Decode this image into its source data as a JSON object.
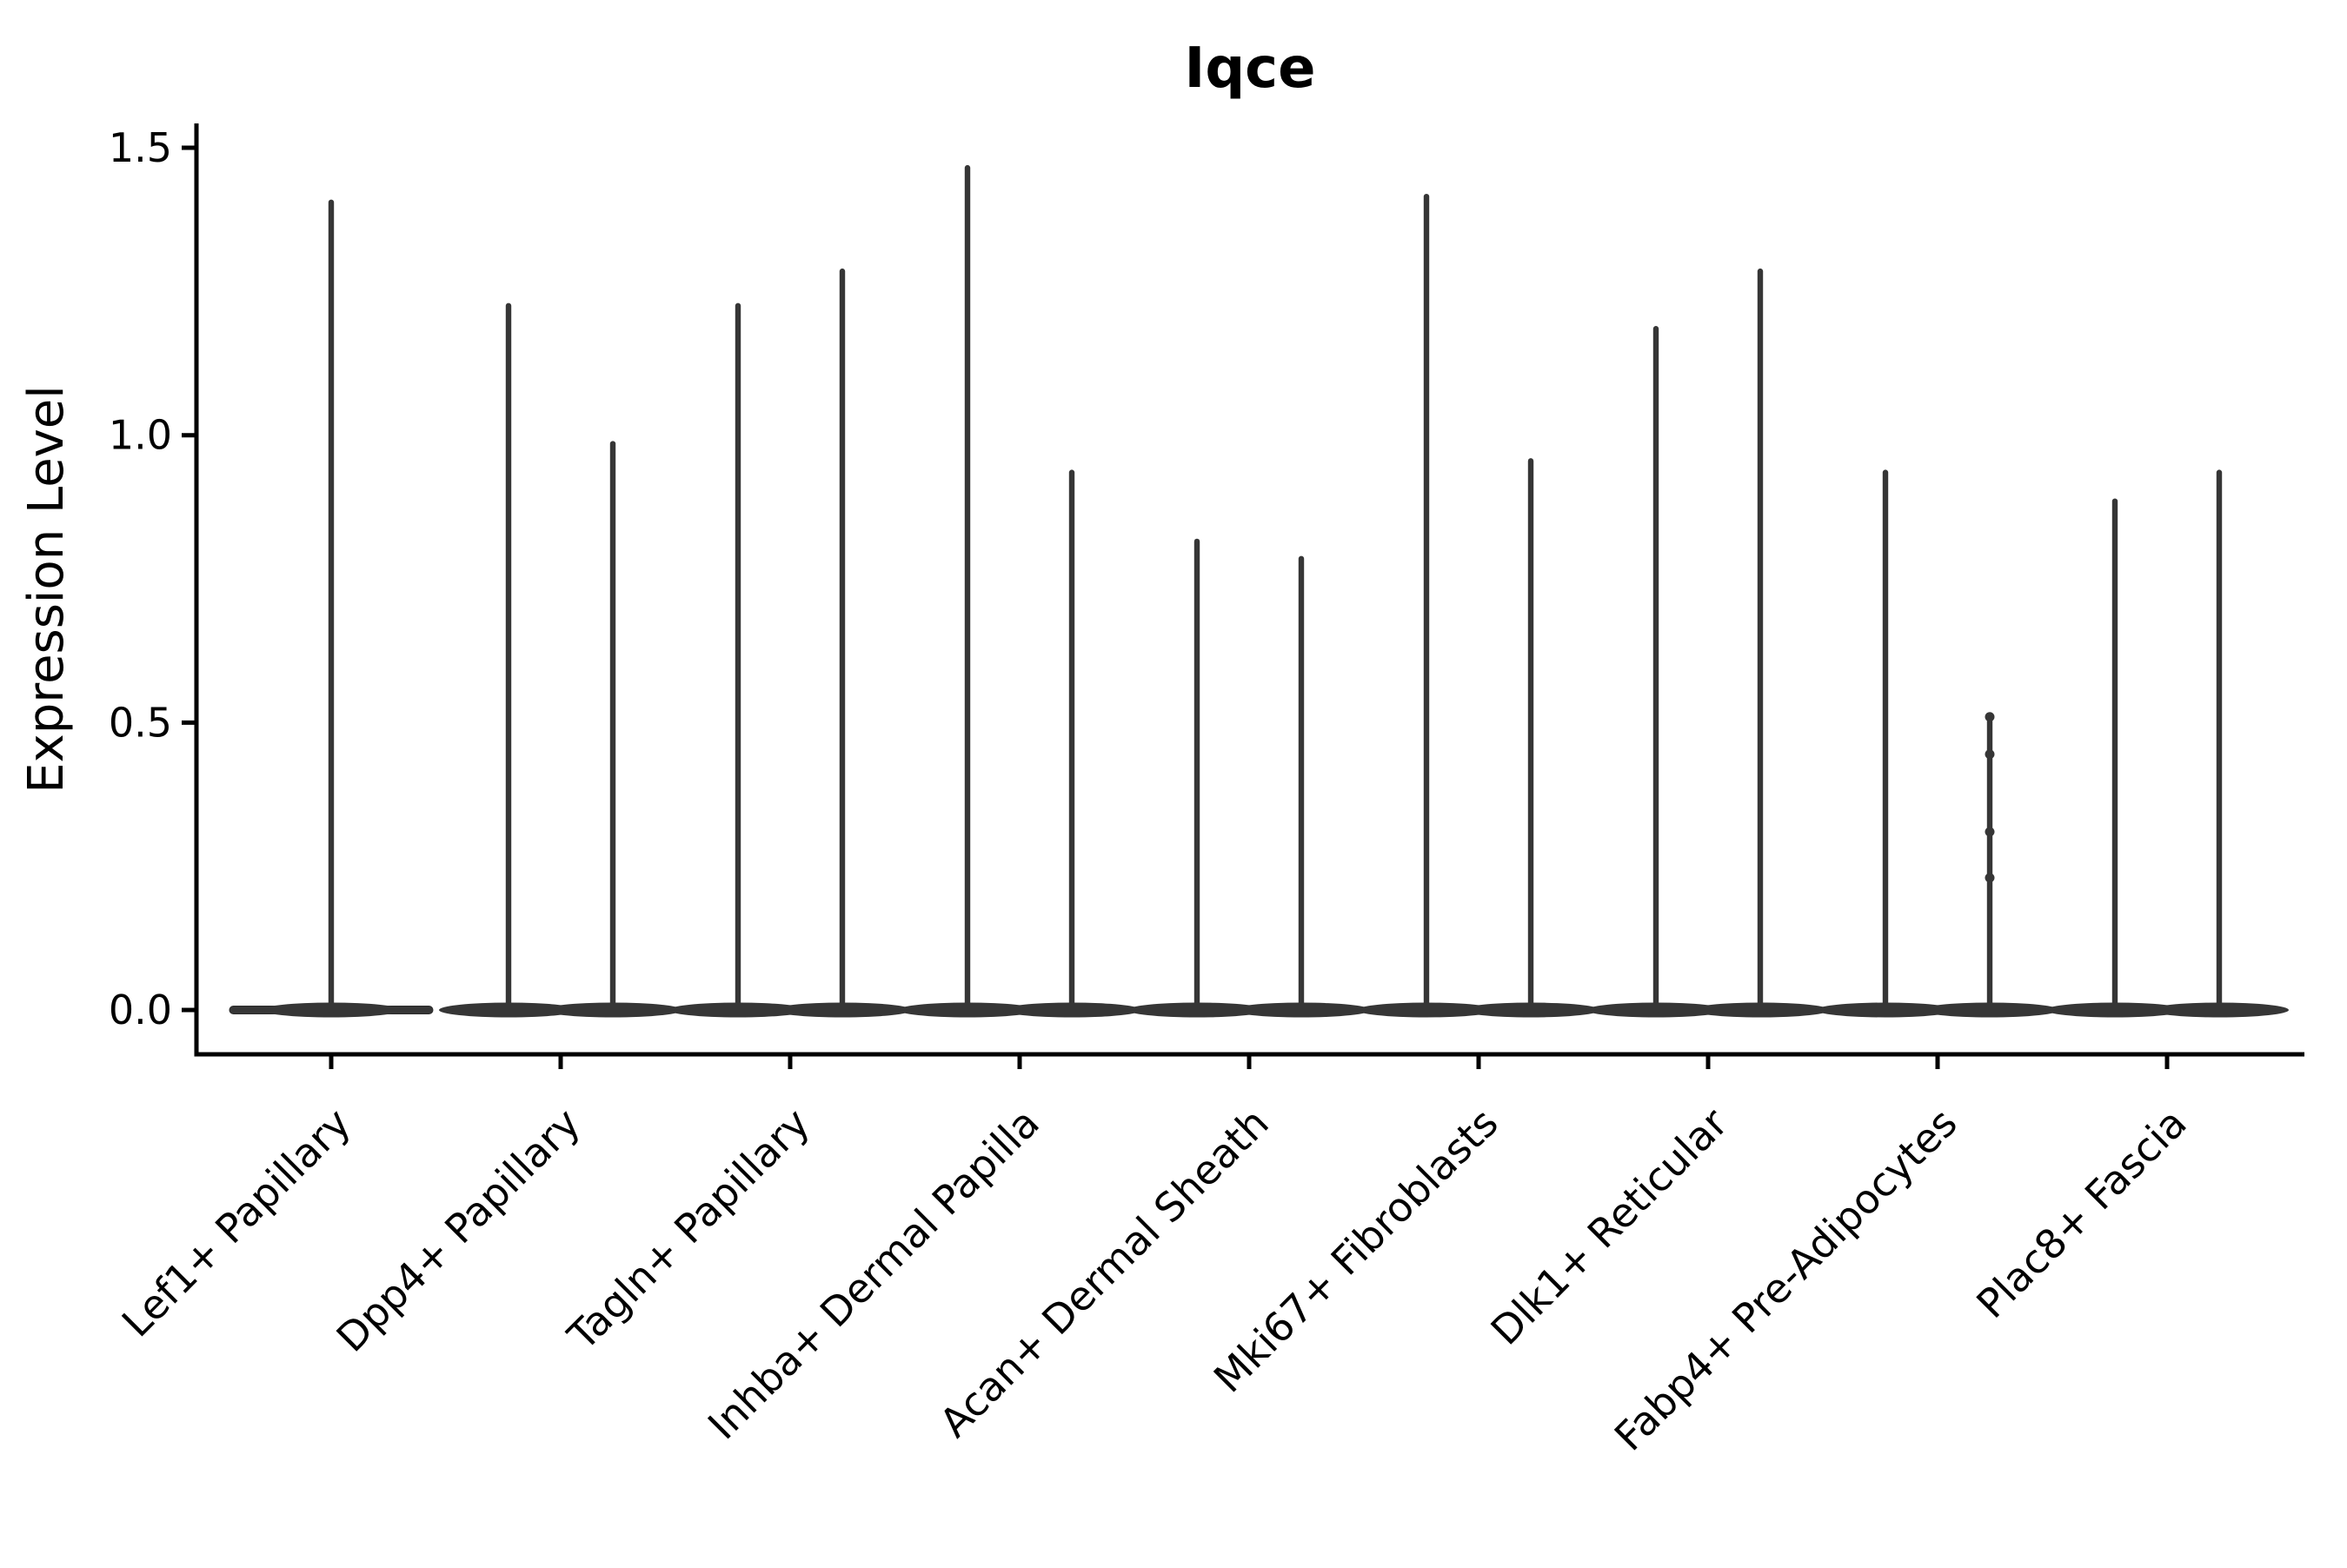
{
  "chart_data": {
    "type": "violin",
    "title": "Iqce",
    "ylabel": "Expression Level",
    "xlabel": "",
    "ytick_labels": [
      "0.0",
      "0.5",
      "1.0",
      "1.5"
    ],
    "ytick_values": [
      0.0,
      0.5,
      1.0,
      1.5
    ],
    "ylim": [
      -0.09,
      1.54
    ],
    "baseline_value": 0.0,
    "grid": false,
    "legend": false,
    "categories": [
      "Lef1+ Papillary",
      "Dpp4+ Papillary",
      "Tagln+ Papillary",
      "Inhba+ Dermal Papilla",
      "Acan+ Dermal Sheath",
      "Mki67+ Fibroblasts",
      "Dlk1+ Reticular",
      "Fabp4+ Pre-Adipocytes",
      "Plac8+ Fascia"
    ],
    "violins": [
      {
        "category": "Lef1+ Papillary",
        "spike_maxima": [
          1.41
        ],
        "jitter_points": []
      },
      {
        "category": "Dpp4+ Papillary",
        "spike_maxima": [
          1.23,
          0.99
        ],
        "jitter_points": []
      },
      {
        "category": "Tagln+ Papillary",
        "spike_maxima": [
          1.23,
          1.29
        ],
        "jitter_points": []
      },
      {
        "category": "Inhba+ Dermal Papilla",
        "spike_maxima": [
          1.47,
          0.94
        ],
        "jitter_points": []
      },
      {
        "category": "Acan+ Dermal Sheath",
        "spike_maxima": [
          0.82,
          0.79
        ],
        "jitter_points": []
      },
      {
        "category": "Mki67+ Fibroblasts",
        "spike_maxima": [
          1.42,
          0.96
        ],
        "jitter_points": []
      },
      {
        "category": "Dlk1+ Reticular",
        "spike_maxima": [
          1.19,
          1.29
        ],
        "jitter_points": []
      },
      {
        "category": "Fabp4+ Pre-Adipocytes",
        "spike_maxima": [
          0.94,
          0.51
        ],
        "jitter_points": [
          {
            "violin_index": 1,
            "values": [
              0.51,
              0.445,
              0.31,
              0.23
            ]
          }
        ]
      },
      {
        "category": "Plac8+ Fascia",
        "spike_maxima": [
          0.89,
          0.94
        ],
        "jitter_points": []
      }
    ],
    "colors": {
      "violin_fill": "#363636",
      "violin_edge": "#2b2b2b",
      "axis": "#000000",
      "background": "#ffffff"
    }
  }
}
